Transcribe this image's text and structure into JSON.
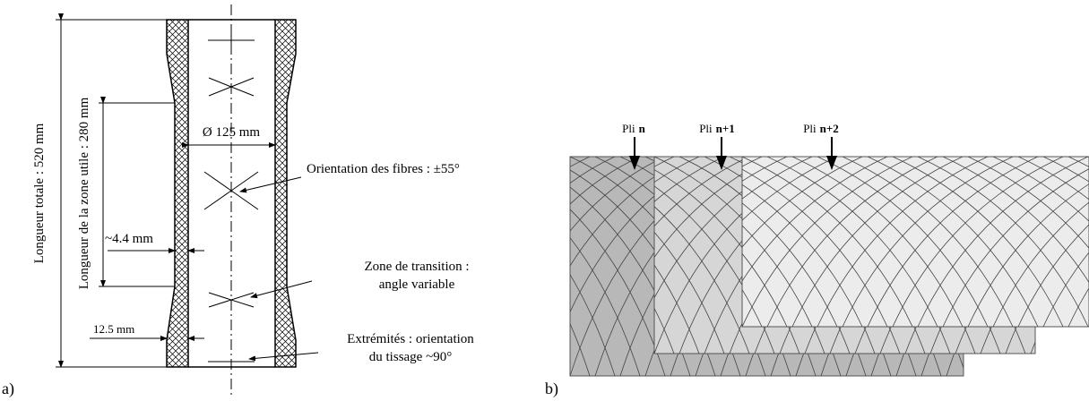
{
  "panel_a": {
    "label": "a)",
    "total_length": "Longueur totale : 520 mm",
    "useful_length": "Longueur de la zone utile : 280 mm",
    "diameter": "Ø 125 mm",
    "fiber_orientation": "Orientation des fibres : ±55°",
    "wall_thickness": "~4.4 mm",
    "end_thickness": "12.5 mm",
    "transition": [
      "Zone de transition :",
      "angle variable"
    ],
    "ends": [
      "Extrémités : orientation",
      "du tissage ~90°"
    ]
  },
  "panel_b": {
    "label": "b)",
    "plies": [
      {
        "prefix": "Pli",
        "ply": "n"
      },
      {
        "prefix": "Pli",
        "ply": "n+1"
      },
      {
        "prefix": "Pli",
        "ply": "n+2"
      }
    ]
  }
}
